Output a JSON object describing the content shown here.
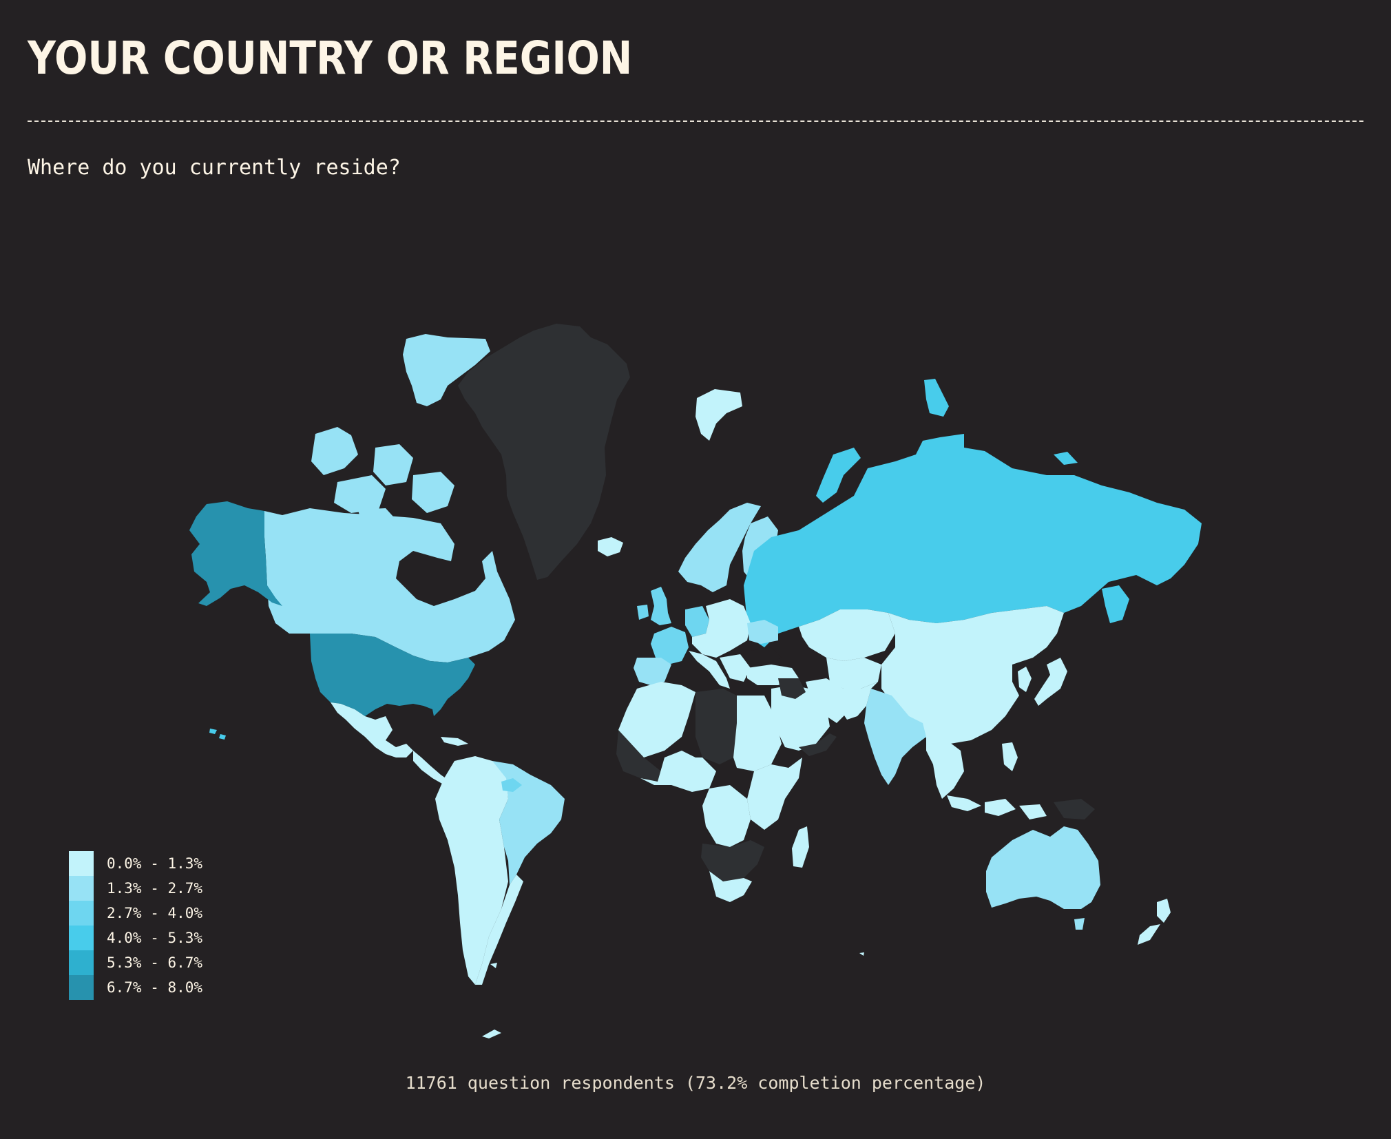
{
  "title": "YOUR COUNTRY OR REGION",
  "question": "Where do you currently reside?",
  "footer": "11761 question respondents (73.2% completion percentage)",
  "colors": {
    "background": "#242123",
    "no_data": "#2e3033",
    "scale": [
      "#c2f3fb",
      "#97e2f5",
      "#6ed6f0",
      "#48cceb",
      "#2eb0cf",
      "#2792ae"
    ]
  },
  "legend": [
    {
      "label": "0.0% - 1.3%",
      "color": "#c2f3fb"
    },
    {
      "label": "1.3% - 2.7%",
      "color": "#97e2f5"
    },
    {
      "label": "2.7% - 4.0%",
      "color": "#6ed6f0"
    },
    {
      "label": "4.0% - 5.3%",
      "color": "#48cceb"
    },
    {
      "label": "5.3% - 6.7%",
      "color": "#2eb0cf"
    },
    {
      "label": "6.7% - 8.0%",
      "color": "#2792ae"
    }
  ],
  "map_data": {
    "type": "choropleth",
    "projection": "mercator",
    "highlighted_regions": {
      "6.7% - 8.0%": [
        "United States",
        "Alaska"
      ],
      "4.0% - 5.3%": [
        "Russia"
      ],
      "2.7% - 4.0%": [
        "Germany",
        "France",
        "United Kingdom"
      ],
      "1.3% - 2.7%": [
        "Canada",
        "Brazil",
        "India",
        "Australia"
      ],
      "0.0% - 1.3%": [
        "China",
        "Mexico",
        "South America",
        "Africa",
        "Europe",
        "Middle East",
        "Southeast Asia",
        "Japan",
        "Korea",
        "New Zealand"
      ]
    },
    "no_data_regions": [
      "Greenland",
      "Libya",
      "Angola",
      "South Africa",
      "Mali",
      "Syria",
      "Iraq"
    ]
  }
}
